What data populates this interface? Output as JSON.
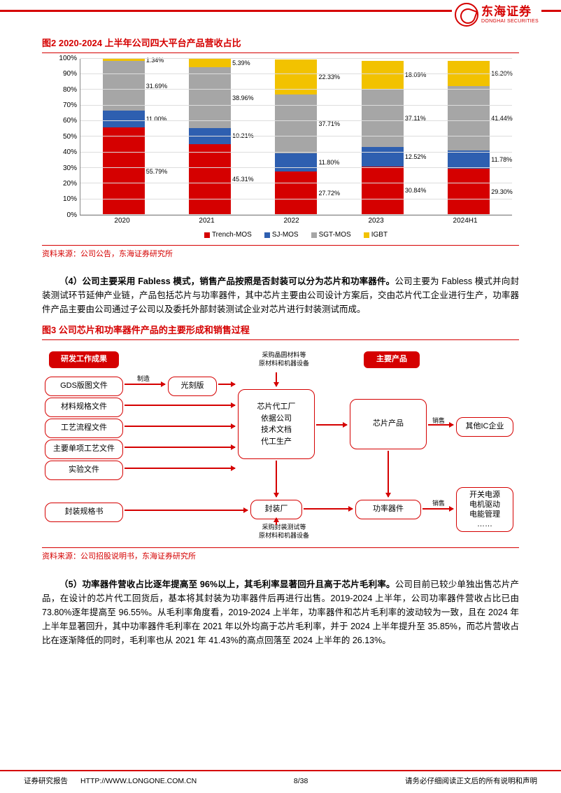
{
  "header": {
    "logo_cn": "东海证券",
    "logo_en": "DONGHAI SECURITIES"
  },
  "fig2": {
    "title": "图2  2020-2024 上半年公司四大平台产品营收占比",
    "type": "stacked-bar",
    "ylim": [
      0,
      100
    ],
    "ytick_step": 10,
    "y_suffix": "%",
    "categories": [
      "2020",
      "2021",
      "2022",
      "2023",
      "2024H1"
    ],
    "series": [
      {
        "name": "Trench-MOS",
        "color": "#d50000"
      },
      {
        "name": "SJ-MOS",
        "color": "#2e5fb0"
      },
      {
        "name": "SGT-MOS",
        "color": "#a6a6a6"
      },
      {
        "name": "IGBT",
        "color": "#f2c200"
      }
    ],
    "data": [
      [
        55.79,
        11.0,
        31.69,
        1.34
      ],
      [
        45.31,
        10.21,
        38.96,
        5.39
      ],
      [
        27.72,
        11.8,
        37.71,
        22.33
      ],
      [
        30.84,
        12.52,
        37.11,
        18.09
      ],
      [
        29.3,
        11.78,
        41.44,
        16.2
      ]
    ],
    "labels": [
      [
        "55.79%",
        "11.00%",
        "31.69%",
        "1.34%"
      ],
      [
        "45.31%",
        "10.21%",
        "38.96%",
        "5.39%"
      ],
      [
        "27.72%",
        "11.80%",
        "37.71%",
        "22.33%"
      ],
      [
        "30.84%",
        "12.52%",
        "37.11%",
        "18.09%"
      ],
      [
        "29.30%",
        "11.78%",
        "41.44%",
        "16.20%"
      ]
    ],
    "bar_width_pct": 60,
    "grid_color": "#dddddd",
    "axis_color": "#888888",
    "label_fontsize": 9
  },
  "source1": "资料来源：公司公告，东海证券研究所",
  "para1_bold": "（4）公司主要采用 Fabless 模式，销售产品按照是否封装可以分为芯片和功率器件。",
  "para1_body": "公司主要为 Fabless 模式并向封装测试环节延伸产业链，产品包括芯片与功率器件，其中芯片主要由公司设计方案后，交由芯片代工企业进行生产，功率器件产品主要由公司通过子公司以及委托外部封装测试企业对芯片进行封装测试而成。",
  "fig3": {
    "title": "图3  公司芯片和功率器件产品的主要形成和销售过程",
    "type": "flowchart",
    "border_color": "#d50000",
    "fill_color": "#d50000",
    "nodes": {
      "hdr1": "研发工作成果",
      "hdr2": "主要产品",
      "n_gds": "GDS版图文件",
      "n_mat": "材料规格文件",
      "n_proc": "工艺流程文件",
      "n_single": "主要单项工艺文件",
      "n_exp": "实验文件",
      "n_pkgspec": "封装规格书",
      "n_mask": "光刻版",
      "n_fab": "芯片代工厂\n依据公司\n技术文档\n代工生产",
      "n_pkg": "封装厂",
      "n_chip": "芯片产品",
      "n_power": "功率器件",
      "n_otheri": "其他IC企业",
      "n_app": "开关电源\n电机驱动\n电能管理\n……"
    },
    "notes": {
      "top_note": "采购晶圆材料等\n原材料和机器设备",
      "bot_note": "采购封装测试等\n原材料和机器设备",
      "lbl_make": "制造",
      "lbl_sell1": "销售",
      "lbl_sell2": "销售"
    }
  },
  "source2": "资料来源：公司招股说明书，东海证券研究所",
  "para2_bold": "（5）功率器件营收占比逐年提高至 96%以上，其毛利率显著回升且高于芯片毛利率。",
  "para2_body": "公司目前已较少单独出售芯片产品，在设计的芯片代工回货后，基本将其封装为功率器件后再进行出售。2019-2024 上半年，公司功率器件营收占比已由 73.80%逐年提高至 96.55%。从毛利率角度看，2019-2024 上半年，功率器件和芯片毛利率的波动较为一致，且在 2024 年上半年显著回升，其中功率器件毛利率在 2021 年以外均高于芯片毛利率，并于 2024 上半年提升至 35.85%，而芯片营收占比在逐渐降低的同时，毛利率也从 2021 年 41.43%的高点回落至 2024 上半年的 26.13%。",
  "footer": {
    "report_type": "证券研究报告",
    "url": "HTTP://WWW.LONGONE.COM.CN",
    "page": "8/38",
    "disclaimer": "请务必仔细阅读正文后的所有说明和声明"
  }
}
